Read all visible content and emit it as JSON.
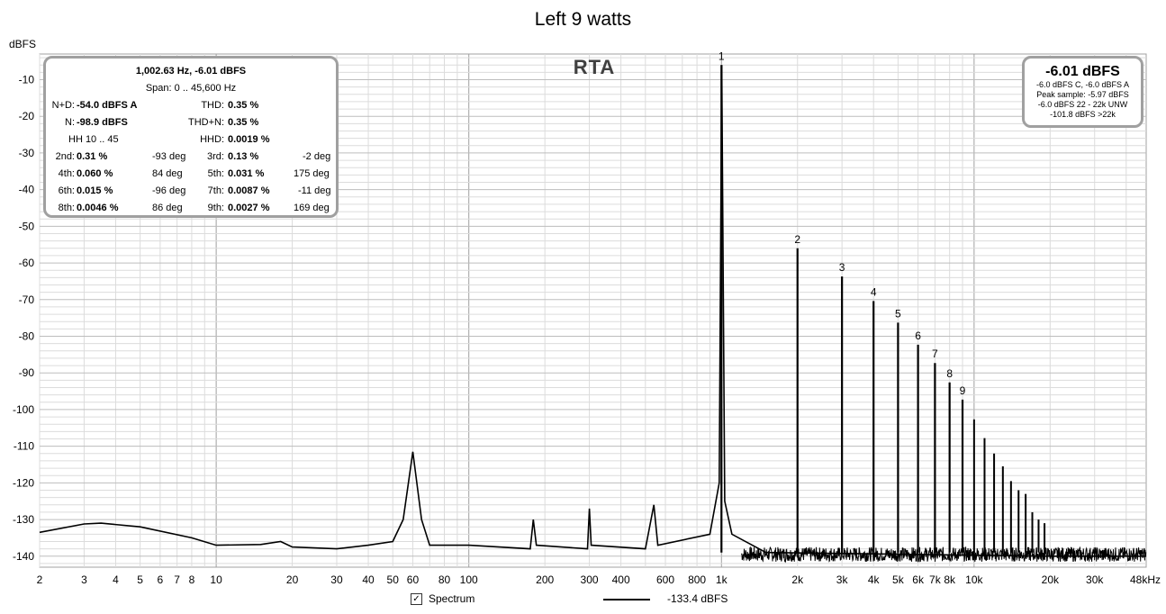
{
  "chart_data": {
    "type": "line",
    "title": "Left 9 watts",
    "ylabel": "dBFS",
    "xlabel": "",
    "x_scale": "log",
    "xlim": [
      2,
      48000
    ],
    "ylim": [
      -143,
      -3
    ],
    "grid": true,
    "x_tick_labels": [
      "2",
      "3",
      "4",
      "5",
      "6",
      "7",
      "8",
      "10",
      "20",
      "30",
      "40",
      "50",
      "60",
      "80",
      "100",
      "200",
      "300",
      "400",
      "600",
      "800",
      "1k",
      "2k",
      "3k",
      "4k",
      "5k",
      "6k",
      "7k",
      "8k",
      "10k",
      "20k",
      "30k",
      "48kHz"
    ],
    "y_tick_labels": [
      "-10",
      "-20",
      "-30",
      "-40",
      "-50",
      "-60",
      "-70",
      "-80",
      "-90",
      "-100",
      "-110",
      "-120",
      "-130",
      "-140"
    ],
    "series": [
      {
        "name": "Spectrum",
        "points": [
          [
            2,
            -133.5
          ],
          [
            3,
            -131.2
          ],
          [
            3.5,
            -131
          ],
          [
            5,
            -132
          ],
          [
            8,
            -135
          ],
          [
            10,
            -137
          ],
          [
            15,
            -136.8
          ],
          [
            18,
            -136
          ],
          [
            20,
            -137.5
          ],
          [
            30,
            -138
          ],
          [
            40,
            -137
          ],
          [
            50,
            -136
          ],
          [
            55,
            -130
          ],
          [
            60,
            -111.5
          ],
          [
            65,
            -130
          ],
          [
            70,
            -137
          ],
          [
            100,
            -137
          ],
          [
            175,
            -138
          ],
          [
            180,
            -130
          ],
          [
            185,
            -137
          ],
          [
            295,
            -138
          ],
          [
            300,
            -127
          ],
          [
            305,
            -137
          ],
          [
            500,
            -138
          ],
          [
            540,
            -126
          ],
          [
            560,
            -137
          ],
          [
            900,
            -134
          ],
          [
            980,
            -120
          ],
          [
            1002.63,
            -6.01
          ],
          [
            1030,
            -125
          ],
          [
            1100,
            -134
          ],
          [
            1500,
            -139
          ],
          [
            20000,
            -140
          ],
          [
            48000,
            -140
          ]
        ]
      }
    ],
    "harmonics": [
      {
        "label": "1",
        "freq": 1000,
        "level": -6.01
      },
      {
        "label": "2",
        "freq": 2000,
        "level": -56
      },
      {
        "label": "3",
        "freq": 3000,
        "level": -63.7
      },
      {
        "label": "4",
        "freq": 4000,
        "level": -70.4
      },
      {
        "label": "5",
        "freq": 5000,
        "level": -76.3
      },
      {
        "label": "6",
        "freq": 6000,
        "level": -82.3
      },
      {
        "label": "7",
        "freq": 7000,
        "level": -87.3
      },
      {
        "label": "8",
        "freq": 8000,
        "level": -92.6
      },
      {
        "label": "9",
        "freq": 9000,
        "level": -97.3
      }
    ],
    "extra_harmonics_levels": [
      -102.7,
      -107.8,
      -112,
      -115.5,
      -119.5,
      -122,
      -123,
      -128,
      -130,
      -131
    ],
    "legend": {
      "checkbox_label": "Spectrum",
      "value": "-133.4 dBFS",
      "placement": "bottom"
    }
  },
  "measurements": {
    "header1": "1,002.63 Hz, -6.01 dBFS",
    "header2": "Span: 0 .. 45,600 Hz",
    "nd_label": "N+D:",
    "nd_value": "-54.0 dBFS A",
    "thd_label": "THD:",
    "thd_value": "0.35 %",
    "n_label": "N:",
    "n_value": "-98.9 dBFS",
    "thdn_label": "THD+N:",
    "thdn_value": "0.35 %",
    "hh_label": "HH 10 .. 45",
    "hhd_label": "HHD:",
    "hhd_value": "0.0019 %",
    "h2_label": "2nd:",
    "h2_value": "0.31 %",
    "h2_phase": "-93 deg",
    "h3_label": "3rd:",
    "h3_value": "0.13 %",
    "h3_phase": "-2 deg",
    "h4_label": "4th:",
    "h4_value": "0.060 %",
    "h4_phase": "84 deg",
    "h5_label": "5th:",
    "h5_value": "0.031 %",
    "h5_phase": "175 deg",
    "h6_label": "6th:",
    "h6_value": "0.015 %",
    "h6_phase": "-96 deg",
    "h7_label": "7th:",
    "h7_value": "0.0087 %",
    "h7_phase": "-11 deg",
    "h8_label": "8th:",
    "h8_value": "0.0046 %",
    "h8_phase": "86 deg",
    "h9_label": "9th:",
    "h9_value": "0.0027 %",
    "h9_phase": "169 deg"
  },
  "level_box": {
    "main": "-6.01 dBFS",
    "line1": "-6.0 dBFS C, -6.0 dBFS A",
    "line2": "Peak sample: -5.97 dBFS",
    "line3": "-6.0 dBFS 22 - 22k UNW",
    "line4": "-101.8 dBFS >22k"
  },
  "overlay_label": "RTA",
  "colors": {
    "trace": "#000000",
    "grid_minor": "#dcdcdc",
    "grid_major": "#a0a0a0",
    "background": "#ffffff"
  }
}
